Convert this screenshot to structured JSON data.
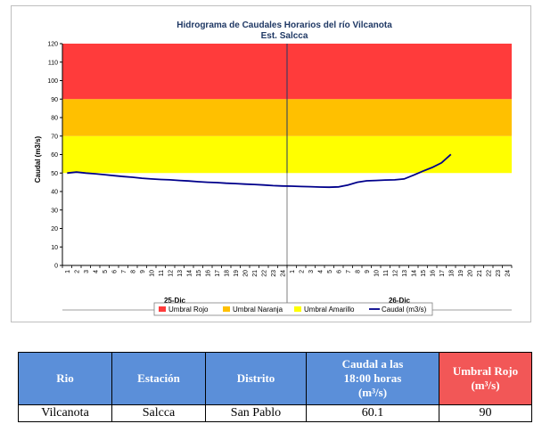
{
  "chart_data": {
    "type": "line",
    "title": "Hidrograma de Caudales Horarios del río Vilcanota",
    "subtitle": "Est. Salcca",
    "ylabel": "Caudal  (m3/s)",
    "ylim": [
      0,
      120
    ],
    "yticks": [
      "0",
      "10",
      "20",
      "30",
      "40",
      "50",
      "60",
      "70",
      "80",
      "90",
      "100",
      "110",
      "120"
    ],
    "x_hour_labels": [
      "1",
      "2",
      "3",
      "4",
      "5",
      "6",
      "7",
      "8",
      "9",
      "10",
      "11",
      "12",
      "13",
      "14",
      "15",
      "16",
      "17",
      "18",
      "19",
      "20",
      "21",
      "22",
      "23",
      "24",
      "1",
      "2",
      "3",
      "4",
      "5",
      "6",
      "7",
      "8",
      "9",
      "10",
      "11",
      "12",
      "13",
      "14",
      "15",
      "16",
      "17",
      "18",
      "19",
      "20",
      "21",
      "22",
      "23",
      "24"
    ],
    "days": [
      "25-Dic",
      "26-Dic"
    ],
    "threshold_bands": [
      {
        "name": "Umbral Amarillo",
        "from": 50,
        "to": 70,
        "color": "#ffff00"
      },
      {
        "name": "Umbral Naranja",
        "from": 70,
        "to": 90,
        "color": "#ffc000"
      },
      {
        "name": "Umbral Rojo",
        "from": 90,
        "to": 120,
        "color": "#ff3b3b"
      }
    ],
    "series": [
      {
        "name": "Caudal (m3/s)",
        "color": "#00008b",
        "values": [
          50.0,
          50.5,
          50.0,
          49.6,
          49.1,
          48.6,
          48.1,
          47.7,
          47.2,
          46.8,
          46.5,
          46.3,
          46.0,
          45.7,
          45.3,
          45.0,
          44.8,
          44.5,
          44.3,
          44.0,
          43.8,
          43.5,
          43.2,
          43.0,
          42.9,
          42.7,
          42.6,
          42.4,
          42.3,
          42.5,
          43.5,
          45.0,
          45.8,
          46.0,
          46.2,
          46.3,
          46.8,
          48.8,
          51.0,
          53.0,
          55.5,
          60.1
        ]
      }
    ],
    "legend": [
      "Umbral Rojo",
      "Umbral Naranja",
      "Umbral Amarillo",
      "Caudal (m3/s)"
    ],
    "legend_position": "bottom"
  },
  "table": {
    "headers": [
      "Rio",
      "Estación",
      "Distrito",
      "Caudal a las 18:00 horas (m³/s)",
      "Umbral Rojo (m³/s)"
    ],
    "header_caudal_line1": "Caudal a las",
    "header_caudal_line2": "18:00 horas",
    "header_caudal_line3": "(m³/s)",
    "header_umbral_line1": "Umbral Rojo",
    "header_umbral_line2": "(m³/s)",
    "row": {
      "rio": "Vilcanota",
      "estacion": "Salcca",
      "distrito": "San Pablo",
      "caudal": "60.1",
      "umbral": "90"
    }
  },
  "colors": {
    "header_blue": "#5b8fd9",
    "header_red": "#f25757"
  }
}
